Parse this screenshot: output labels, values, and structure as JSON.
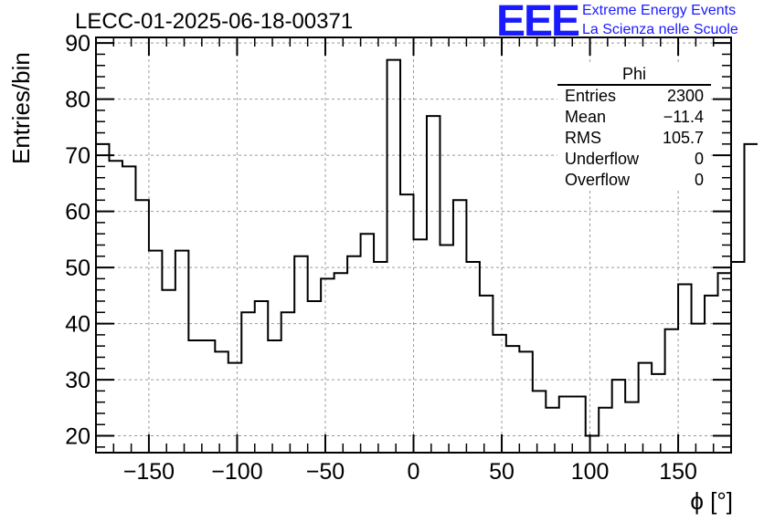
{
  "title": "LECC-01-2025-06-18-00371",
  "logo": {
    "mark": "EEE",
    "line1": "Extreme Energy Events",
    "line2": "La Scienza nelle Scuole",
    "color": "#1a1aff"
  },
  "stats": {
    "name": "Phi",
    "rows": [
      {
        "label": "Entries",
        "value": "2300"
      },
      {
        "label": "Mean",
        "value": "−11.4"
      },
      {
        "label": "RMS",
        "value": "105.7"
      },
      {
        "label": "Underflow",
        "value": "0"
      },
      {
        "label": "Overflow",
        "value": "0"
      }
    ]
  },
  "chart_data": {
    "type": "bar",
    "style": "step-histogram",
    "title": "LECC-01-2025-06-18-00371",
    "xlabel": "ϕ [°]",
    "ylabel": "Entries/bin",
    "xlim": [
      -180,
      180
    ],
    "ylim": [
      17,
      91
    ],
    "xticks": [
      -150,
      -100,
      -50,
      0,
      50,
      100,
      150
    ],
    "yticks": [
      20,
      30,
      40,
      50,
      60,
      70,
      80,
      90
    ],
    "grid": true,
    "bin_width": 7.5,
    "bin_start": -180,
    "values": [
      72,
      69,
      68,
      62,
      53,
      46,
      53,
      37,
      37,
      35,
      33,
      42,
      44,
      37,
      42,
      52,
      44,
      48,
      49,
      52,
      56,
      51,
      87,
      63,
      55,
      77,
      54,
      62,
      51,
      45,
      38,
      36,
      35,
      28,
      25,
      27,
      27,
      20,
      25,
      30,
      26,
      33,
      31,
      39,
      47,
      40,
      45,
      49,
      51,
      72
    ],
    "line_color": "#000000"
  }
}
